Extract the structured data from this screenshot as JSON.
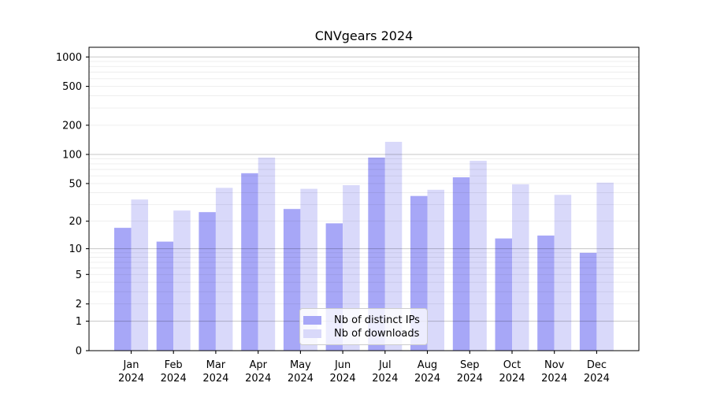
{
  "chart_data": {
    "type": "bar",
    "title": "CNVgears 2024",
    "categories": [
      "Jan",
      "Feb",
      "Mar",
      "Apr",
      "May",
      "Jun",
      "Jul",
      "Aug",
      "Sep",
      "Oct",
      "Nov",
      "Dec"
    ],
    "year_label": "2024",
    "series": [
      {
        "id": "distinct-ips",
        "name": "Nb of distinct IPs",
        "color": "#a7a7f7",
        "values": [
          17,
          12,
          25,
          64,
          27,
          19,
          93,
          37,
          58,
          13,
          14,
          9
        ]
      },
      {
        "id": "downloads",
        "name": "Nb of downloads",
        "color": "#d9d9fa",
        "values": [
          34,
          26,
          45,
          93,
          44,
          48,
          135,
          43,
          86,
          49,
          38,
          51
        ]
      }
    ],
    "xlabel": "",
    "ylabel": "",
    "yscale": "log1p",
    "ylim": [
      0,
      1240
    ],
    "yticks": [
      0,
      1,
      2,
      5,
      10,
      20,
      50,
      100,
      200,
      500,
      1000
    ],
    "grid": {
      "on": true,
      "major": [
        1,
        10,
        100,
        1000
      ],
      "minor": [
        2,
        3,
        4,
        5,
        6,
        7,
        8,
        9,
        20,
        30,
        40,
        50,
        60,
        70,
        80,
        90,
        200,
        300,
        400,
        500,
        600,
        700,
        800,
        900
      ]
    },
    "legend_position": "lower center",
    "colors": {
      "major_grid": "rgba(0,0,0,0.22)",
      "minor_grid": "rgba(0,0,0,0.075)",
      "spine": "#000000",
      "text": "#000000"
    }
  }
}
